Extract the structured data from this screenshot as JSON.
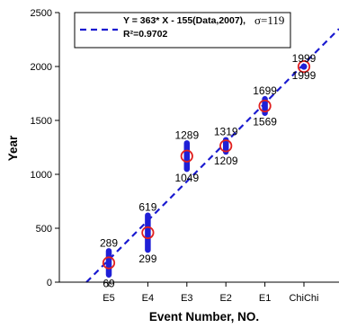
{
  "chart_data": {
    "type": "scatter",
    "categories": [
      "E5",
      "E4",
      "E3",
      "E2",
      "E1",
      "ChiChi"
    ],
    "x": [
      1,
      2,
      3,
      4,
      5,
      6
    ],
    "age_ranges": [
      {
        "category": "E5",
        "low": 69,
        "high": 289
      },
      {
        "category": "E4",
        "low": 299,
        "high": 619
      },
      {
        "category": "E3",
        "low": 1049,
        "high": 1289
      },
      {
        "category": "E2",
        "low": 1209,
        "high": 1319
      },
      {
        "category": "E1",
        "low": 1569,
        "high": 1699
      },
      {
        "category": "ChiChi",
        "low": 1999,
        "high": 1999
      }
    ],
    "midpoints": [
      179,
      459,
      1169,
      1264,
      1634,
      1999
    ],
    "fit": {
      "slope": 363,
      "intercept": -155
    },
    "legend": {
      "equation": "Y = 363* X - 155(Data,2007),",
      "sigma": "σ=119",
      "r2": "R²=0.9702",
      "position": "top-left"
    },
    "xlabel": "Event Number, NO.",
    "ylabel": "Year",
    "ylim": [
      0,
      2500
    ],
    "yticks": [
      0,
      500,
      1000,
      1500,
      2000,
      2500
    ],
    "grid": false,
    "colors": {
      "range_bar": "#1f1fd6",
      "marker": "#e02020",
      "fit_line": "#1a1ad0",
      "axis": "#000000"
    }
  }
}
